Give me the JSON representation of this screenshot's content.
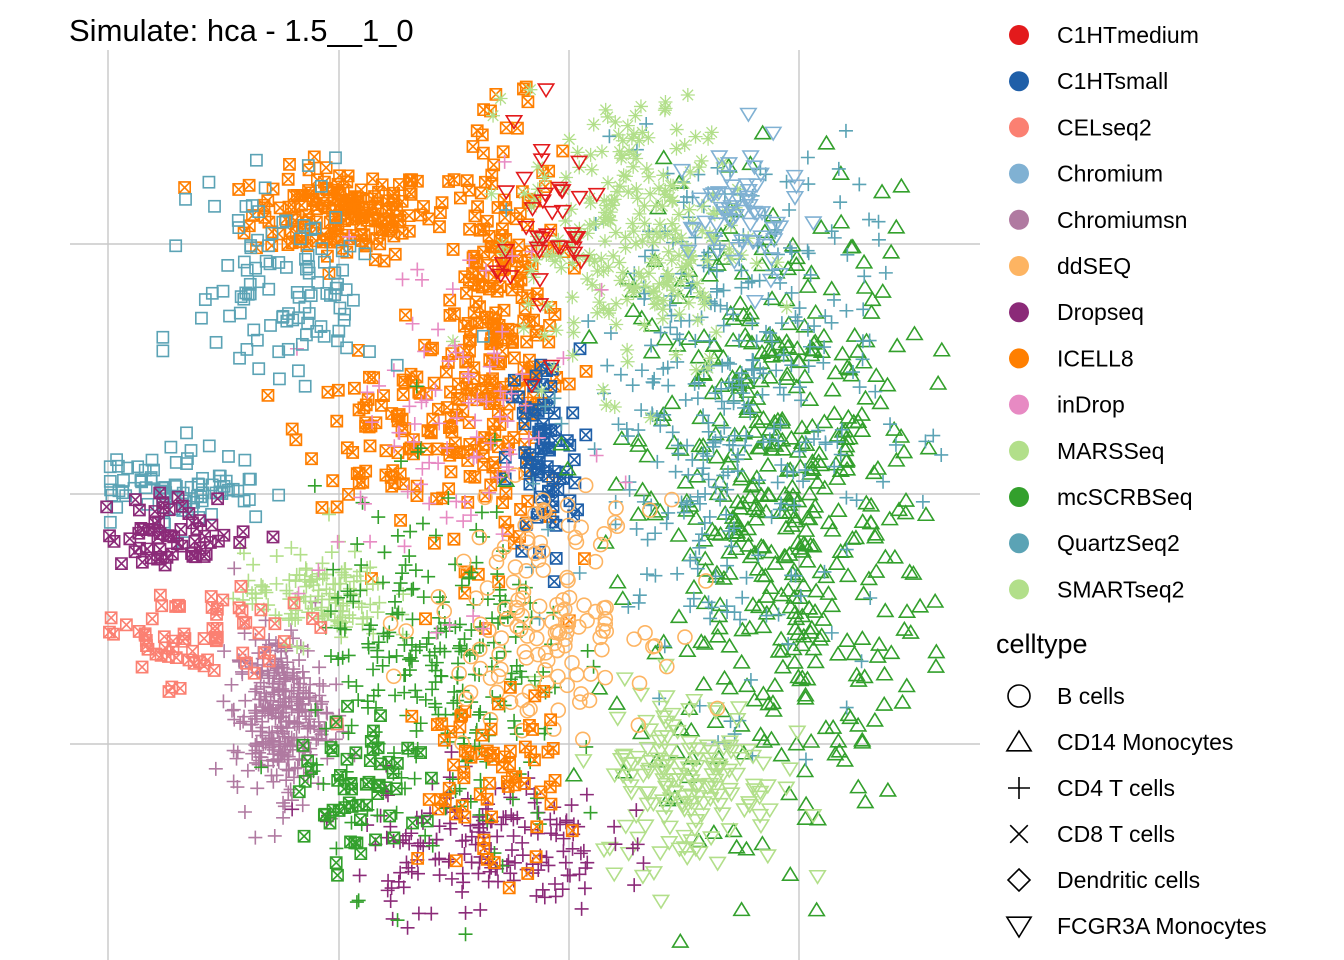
{
  "chart_data": {
    "type": "scatter",
    "title": "Simulate: hca - 1.5__1_0",
    "xlabel": "",
    "ylabel": "",
    "grid": true,
    "axis_ticks_visible": false,
    "legend_position": "right",
    "color_legend": {
      "title": "",
      "entries": [
        {
          "label": "C1HTmedium",
          "color": "#e31a1c"
        },
        {
          "label": "C1HTsmall",
          "color": "#1f5fa8"
        },
        {
          "label": "CELseq2",
          "color": "#fb8072"
        },
        {
          "label": "Chromium",
          "color": "#80b1d3"
        },
        {
          "label": "Chromiumsn",
          "color": "#b07aa1"
        },
        {
          "label": "ddSEQ",
          "color": "#fdb462"
        },
        {
          "label": "Dropseq",
          "color": "#8b2a78"
        },
        {
          "label": "ICELL8",
          "color": "#ff7f00"
        },
        {
          "label": "inDrop",
          "color": "#e78ac3"
        },
        {
          "label": "MARSSeq",
          "color": "#b2df8a"
        },
        {
          "label": "mcSCRBSeq",
          "color": "#33a02c"
        },
        {
          "label": "QuartzSeq2",
          "color": "#5ba3b5"
        },
        {
          "label": "SMARTseq2",
          "color": "#b2df8a"
        }
      ]
    },
    "shape_legend": {
      "title": "celltype",
      "entries": [
        {
          "label": "B cells",
          "shape": "circle"
        },
        {
          "label": "CD14 Monocytes",
          "shape": "triangle-up"
        },
        {
          "label": "CD4 T cells",
          "shape": "plus"
        },
        {
          "label": "CD8 T cells",
          "shape": "cross"
        },
        {
          "label": "Dendritic cells",
          "shape": "diamond"
        },
        {
          "label": "FCGR3A Monocytes",
          "shape": "triangle-down"
        }
      ]
    },
    "xlim": [
      0,
      1
    ],
    "ylim": [
      0,
      1
    ],
    "clusters": [
      {
        "method": "ICELL8",
        "shape": "square-cross",
        "cx": 0.3,
        "cy": 0.82,
        "sx": 0.05,
        "sy": 0.025,
        "n": 180
      },
      {
        "method": "ICELL8",
        "shape": "square-cross",
        "cx": 0.47,
        "cy": 0.68,
        "sx": 0.035,
        "sy": 0.12,
        "n": 280
      },
      {
        "method": "ICELL8",
        "shape": "square-cross",
        "cx": 0.36,
        "cy": 0.58,
        "sx": 0.05,
        "sy": 0.04,
        "n": 90
      },
      {
        "method": "C1HTsmall",
        "shape": "square-cross",
        "cx": 0.52,
        "cy": 0.55,
        "sx": 0.02,
        "sy": 0.06,
        "n": 80
      },
      {
        "method": "mcSCRBSeq",
        "shape": "triangle-up",
        "cx": 0.78,
        "cy": 0.5,
        "sx": 0.08,
        "sy": 0.17,
        "n": 520
      },
      {
        "method": "QuartzSeq2",
        "shape": "plus",
        "cx": 0.72,
        "cy": 0.62,
        "sx": 0.08,
        "sy": 0.16,
        "n": 360
      },
      {
        "method": "SMARTseq2",
        "shape": "asterisk",
        "cx": 0.62,
        "cy": 0.8,
        "sx": 0.06,
        "sy": 0.08,
        "n": 260
      },
      {
        "method": "MARSSeq",
        "shape": "triangle-down",
        "cx": 0.68,
        "cy": 0.2,
        "sx": 0.05,
        "sy": 0.05,
        "n": 160
      },
      {
        "method": "Chromiumsn",
        "shape": "plus",
        "cx": 0.23,
        "cy": 0.27,
        "sx": 0.025,
        "sy": 0.045,
        "n": 300
      },
      {
        "method": "SMARTseq2",
        "shape": "plus",
        "cx": 0.27,
        "cy": 0.4,
        "sx": 0.04,
        "sy": 0.025,
        "n": 130
      },
      {
        "method": "QuartzSeq2",
        "shape": "square",
        "cx": 0.12,
        "cy": 0.52,
        "sx": 0.05,
        "sy": 0.02,
        "n": 90
      },
      {
        "method": "Dropseq",
        "shape": "square-cross",
        "cx": 0.12,
        "cy": 0.47,
        "sx": 0.04,
        "sy": 0.02,
        "n": 60
      },
      {
        "method": "Dropseq",
        "shape": "plus",
        "cx": 0.45,
        "cy": 0.13,
        "sx": 0.07,
        "sy": 0.04,
        "n": 180
      },
      {
        "method": "mcSCRBSeq",
        "shape": "plus",
        "cx": 0.41,
        "cy": 0.3,
        "sx": 0.07,
        "sy": 0.1,
        "n": 260
      },
      {
        "method": "ddSEQ",
        "shape": "circle",
        "cx": 0.52,
        "cy": 0.38,
        "sx": 0.06,
        "sy": 0.06,
        "n": 140
      },
      {
        "method": "inDrop",
        "shape": "plus",
        "cx": 0.42,
        "cy": 0.6,
        "sx": 0.07,
        "sy": 0.1,
        "n": 90
      },
      {
        "method": "CELseq2",
        "shape": "square-cross",
        "cx": 0.14,
        "cy": 0.35,
        "sx": 0.06,
        "sy": 0.03,
        "n": 70
      },
      {
        "method": "QuartzSeq2",
        "shape": "square",
        "cx": 0.24,
        "cy": 0.74,
        "sx": 0.05,
        "sy": 0.06,
        "n": 110
      },
      {
        "method": "C1HTmedium",
        "shape": "triangle-down",
        "cx": 0.52,
        "cy": 0.8,
        "sx": 0.03,
        "sy": 0.06,
        "n": 40
      },
      {
        "method": "Chromium",
        "shape": "triangle-down",
        "cx": 0.74,
        "cy": 0.82,
        "sx": 0.03,
        "sy": 0.04,
        "n": 60
      },
      {
        "method": "ICELL8",
        "shape": "square-cross",
        "cx": 0.46,
        "cy": 0.2,
        "sx": 0.04,
        "sy": 0.05,
        "n": 70
      },
      {
        "method": "mcSCRBSeq",
        "shape": "square-cross",
        "cx": 0.32,
        "cy": 0.18,
        "sx": 0.03,
        "sy": 0.04,
        "n": 60
      }
    ]
  }
}
